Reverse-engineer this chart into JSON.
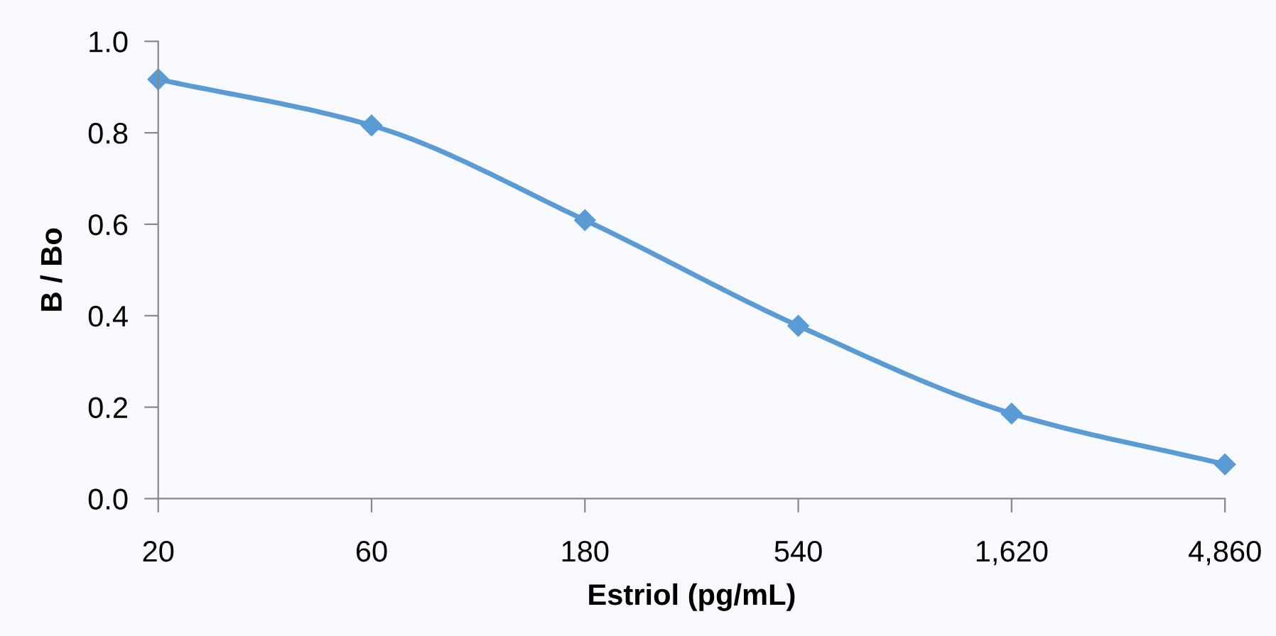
{
  "chart_data": {
    "type": "line",
    "xlabel": "Estriol (pg/mL)",
    "ylabel": "B / Bo",
    "x": [
      20,
      60,
      180,
      540,
      1620,
      4860
    ],
    "series": [
      {
        "color": "#5b9bd5",
        "values": [
          0.917,
          0.816,
          0.609,
          0.378,
          0.186,
          0.075
        ]
      }
    ],
    "log": "x",
    "xlim": [
      20,
      4860
    ],
    "xticks": [
      20,
      60,
      180,
      540,
      {
        "value": 1620,
        "label": "1,620"
      },
      {
        "value": 4860,
        "label": "4,860"
      }
    ],
    "ylim": [
      0,
      1
    ],
    "yticks": [
      {
        "value": 0,
        "label": "0.0"
      },
      {
        "value": 0.2,
        "label": "0.2"
      },
      {
        "value": 0.4,
        "label": "0.4"
      },
      {
        "value": 0.6,
        "label": "0.6"
      },
      {
        "value": 0.8,
        "label": "0.8"
      },
      {
        "value": 1,
        "label": "1.0"
      }
    ],
    "grid": false,
    "marker": "diamond",
    "line_style": "solid"
  }
}
